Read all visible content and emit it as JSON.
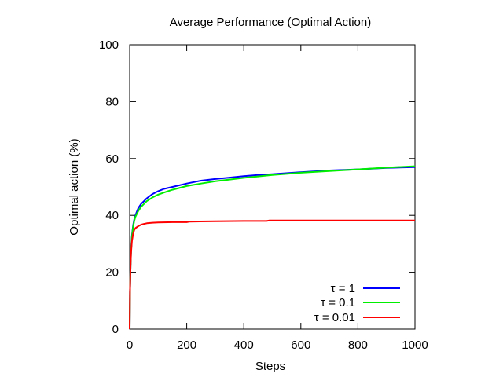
{
  "chart_data": {
    "type": "line",
    "title": "Average Performance (Optimal Action)",
    "xlabel": "Steps",
    "ylabel": "Optimal action (%)",
    "xlim": [
      0,
      1000
    ],
    "ylim": [
      0,
      100
    ],
    "xticks": [
      0,
      200,
      400,
      600,
      800,
      1000
    ],
    "yticks": [
      0,
      20,
      40,
      60,
      80,
      100
    ],
    "grid": false,
    "legend_position": "bottom-right",
    "series": [
      {
        "name": "τ = 1",
        "color": "#0000ff",
        "x": [
          0,
          1,
          3,
          5,
          8,
          12,
          16,
          20,
          30,
          40,
          50,
          60,
          80,
          100,
          120,
          150,
          200,
          250,
          300,
          350,
          400,
          450,
          500,
          600,
          700,
          800,
          900,
          1000
        ],
        "y": [
          0,
          13,
          22,
          28,
          33,
          36.5,
          38.5,
          40,
          42.5,
          44,
          45,
          46,
          47.5,
          48.5,
          49.3,
          50,
          51.2,
          52.2,
          52.8,
          53.3,
          53.8,
          54.2,
          54.5,
          55.2,
          55.8,
          56.2,
          56.7,
          57
        ]
      },
      {
        "name": "τ = 0.1",
        "color": "#00ee00",
        "x": [
          0,
          1,
          3,
          5,
          8,
          12,
          16,
          20,
          30,
          40,
          50,
          60,
          80,
          100,
          120,
          150,
          200,
          250,
          300,
          350,
          400,
          450,
          500,
          600,
          700,
          800,
          900,
          1000
        ],
        "y": [
          0,
          13,
          22,
          27.5,
          32.5,
          36,
          38,
          39.5,
          41.5,
          43,
          44,
          45,
          46.3,
          47.3,
          48,
          49,
          50.3,
          51.2,
          52,
          52.6,
          53.2,
          53.7,
          54.2,
          55,
          55.6,
          56.2,
          56.8,
          57.3
        ]
      },
      {
        "name": "τ = 0.01",
        "color": "#ff0000",
        "x": [
          0,
          1,
          3,
          5,
          8,
          12,
          16,
          20,
          30,
          40,
          50,
          60,
          80,
          100,
          150,
          200,
          210,
          300,
          400,
          480,
          490,
          600,
          800,
          1000
        ],
        "y": [
          0,
          13,
          22,
          27,
          31,
          33.5,
          34.8,
          35.5,
          36.2,
          36.7,
          37,
          37.2,
          37.4,
          37.5,
          37.6,
          37.6,
          37.8,
          37.9,
          38,
          38,
          38.2,
          38.2,
          38.2,
          38.2
        ]
      }
    ]
  }
}
